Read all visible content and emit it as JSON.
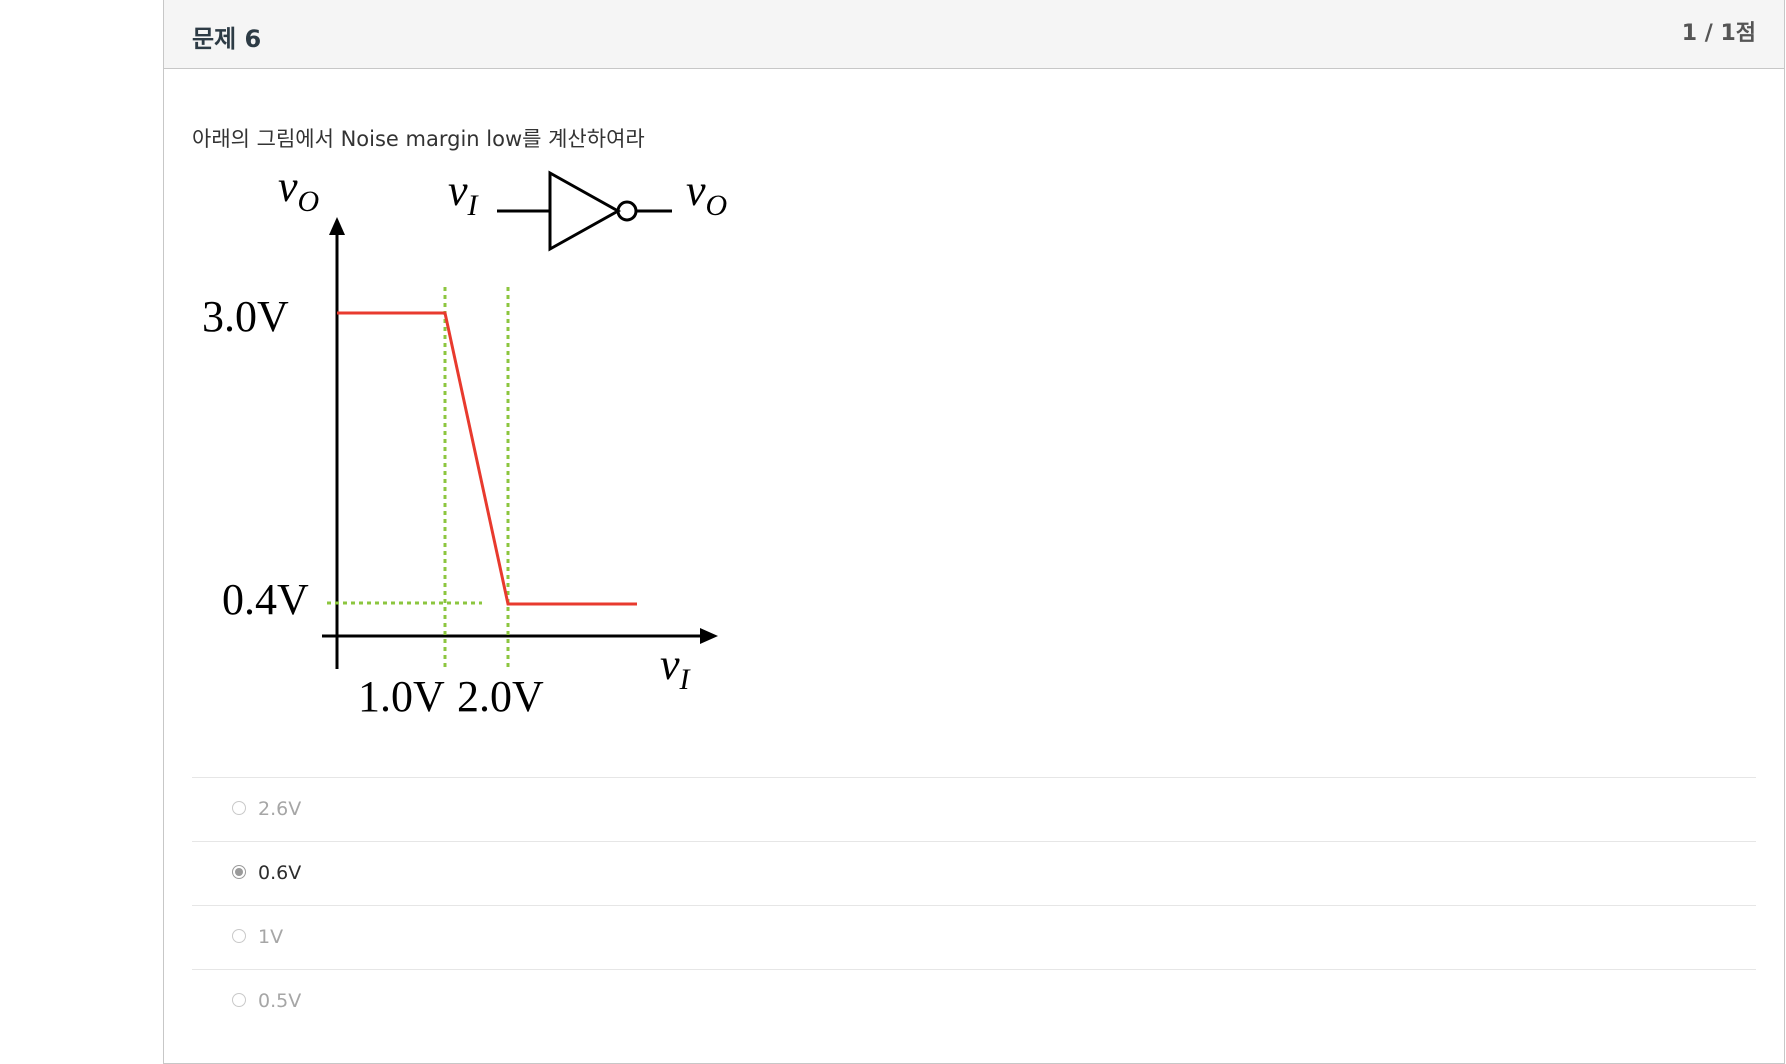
{
  "question": {
    "title": "문제 6",
    "points": "1 / 1점",
    "text": "아래의 그림에서 Noise margin low를 계산하여라"
  },
  "diagram": {
    "labels": {
      "vo_axis": "v",
      "vo_axis_sub": "O",
      "vi_axis": "v",
      "vi_axis_sub": "I",
      "inv_in": "v",
      "inv_in_sub": "I",
      "inv_out": "v",
      "inv_out_sub": "O",
      "voh": "3.0V",
      "vol": "0.4V",
      "vil": "1.0V",
      "vih": "2.0V"
    },
    "colors": {
      "curve": "#e83a2e",
      "guides": "#8cc63f",
      "axes": "#000000"
    }
  },
  "answers": [
    {
      "label": "2.6V",
      "selected": false
    },
    {
      "label": "0.6V",
      "selected": true
    },
    {
      "label": "1V",
      "selected": false
    },
    {
      "label": "0.5V",
      "selected": false
    }
  ]
}
